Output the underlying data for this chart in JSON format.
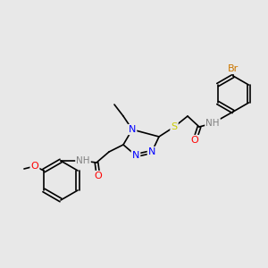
{
  "bg_color": "#e8e8e8",
  "atom_colors": {
    "C": "#000000",
    "N": "#0000ff",
    "O": "#ff0000",
    "S": "#cccc00",
    "Br": "#cc7700",
    "H": "#808080"
  },
  "bond_color": "#000000",
  "font_size": 7.5,
  "line_width": 1.2
}
